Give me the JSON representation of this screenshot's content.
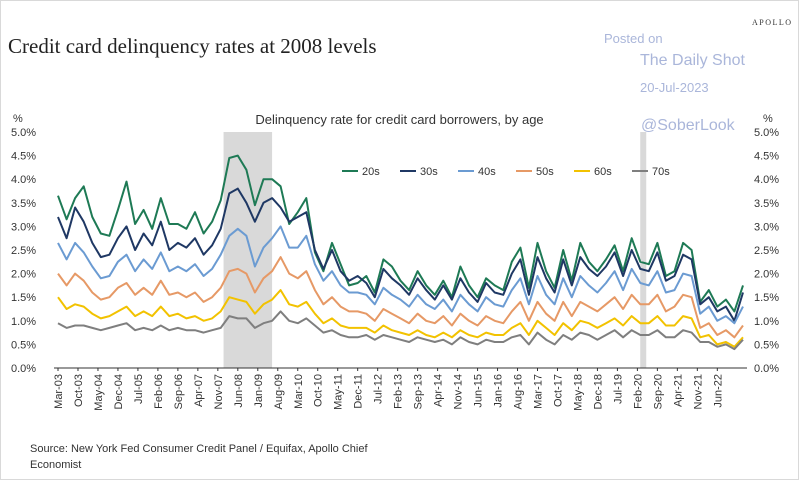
{
  "header": {
    "title": "Credit card delinquency rates at 2008 levels",
    "brand": "APOLLO",
    "subtitle": "Delinquency rate for credit card borrowers, by age",
    "axis_unit_left": "%",
    "axis_unit_right": "%",
    "source": "Source: New York Fed Consumer Credit Panel / Equifax, Apollo Chief Economist"
  },
  "watermark": {
    "posted_on": "Posted on",
    "site": "The Daily Shot",
    "date": "20-Jul-2023",
    "handle": "@SoberLook"
  },
  "chart_data": {
    "type": "line",
    "title": "Delinquency rate for credit card borrowers, by age",
    "ylabel": "%",
    "ylim": [
      0,
      5
    ],
    "yticks": [
      "0.0%",
      "0.5%",
      "1.0%",
      "1.5%",
      "2.0%",
      "2.5%",
      "3.0%",
      "3.5%",
      "4.0%",
      "4.5%",
      "5.0%"
    ],
    "x_start": "Mar-03",
    "x_step_months": 3,
    "x_count": 81,
    "xtick_labels": [
      "Mar-03",
      "Oct-03",
      "May-04",
      "Dec-04",
      "Jul-05",
      "Feb-06",
      "Sep-06",
      "Apr-07",
      "Nov-07",
      "Jun-08",
      "Jan-09",
      "Aug-09",
      "Mar-10",
      "Oct-10",
      "May-11",
      "Dec-11",
      "Jul-12",
      "Feb-13",
      "Sep-13",
      "Apr-14",
      "Nov-14",
      "Jun-15",
      "Jan-16",
      "Aug-16",
      "Mar-17",
      "Oct-17",
      "May-18",
      "Dec-18",
      "Jul-19",
      "Feb-20",
      "Sep-20",
      "Apr-21",
      "Nov-21",
      "Jun-22"
    ],
    "recessions": [
      [
        "Jan-08",
        "Jun-09"
      ],
      [
        "Mar-20",
        "Apr-20"
      ]
    ],
    "legend_position": "top-right",
    "grid": false,
    "series": [
      {
        "name": "20s",
        "color": "#1e7a55",
        "values": [
          3.65,
          3.15,
          3.6,
          3.85,
          3.2,
          2.85,
          2.8,
          3.35,
          3.95,
          3.05,
          3.35,
          2.95,
          3.6,
          3.05,
          3.05,
          2.95,
          3.3,
          2.85,
          3.1,
          3.55,
          4.45,
          4.5,
          4.2,
          3.45,
          4.0,
          4.0,
          3.85,
          3.05,
          3.3,
          3.6,
          2.45,
          2.05,
          2.65,
          2.2,
          1.75,
          1.8,
          1.95,
          1.6,
          2.3,
          2.15,
          1.85,
          1.65,
          2.05,
          1.75,
          1.55,
          1.85,
          1.5,
          2.15,
          1.75,
          1.5,
          1.9,
          1.75,
          1.65,
          2.25,
          2.55,
          1.7,
          2.65,
          2.05,
          1.7,
          2.5,
          1.85,
          2.65,
          2.25,
          2.05,
          2.3,
          2.6,
          2.05,
          2.75,
          2.25,
          2.2,
          2.65,
          1.95,
          2.05,
          2.65,
          2.5,
          1.4,
          1.65,
          1.3,
          1.45,
          1.2,
          1.75
        ]
      },
      {
        "name": "30s",
        "color": "#1f3864",
        "values": [
          3.2,
          2.75,
          3.4,
          3.1,
          2.65,
          2.35,
          2.4,
          2.75,
          3.0,
          2.5,
          2.85,
          2.6,
          3.1,
          2.5,
          2.65,
          2.55,
          2.75,
          2.4,
          2.6,
          2.95,
          3.7,
          3.8,
          3.5,
          3.1,
          3.5,
          3.6,
          3.4,
          3.1,
          3.2,
          3.3,
          2.5,
          2.1,
          2.5,
          2.05,
          1.85,
          1.95,
          1.8,
          1.5,
          2.1,
          1.9,
          1.75,
          1.55,
          1.9,
          1.65,
          1.45,
          1.75,
          1.45,
          1.9,
          1.6,
          1.4,
          1.8,
          1.6,
          1.55,
          2.0,
          2.3,
          1.55,
          2.35,
          1.9,
          1.6,
          2.3,
          1.75,
          2.35,
          2.1,
          1.95,
          2.15,
          2.45,
          1.95,
          2.5,
          2.1,
          2.05,
          2.45,
          1.85,
          1.95,
          2.4,
          2.3,
          1.35,
          1.5,
          1.2,
          1.3,
          1.0,
          1.6
        ]
      },
      {
        "name": "40s",
        "color": "#6b9bd2",
        "values": [
          2.65,
          2.3,
          2.65,
          2.45,
          2.15,
          1.9,
          1.95,
          2.25,
          2.4,
          2.05,
          2.3,
          2.1,
          2.45,
          2.05,
          2.15,
          2.05,
          2.2,
          1.95,
          2.1,
          2.4,
          2.8,
          2.95,
          2.8,
          2.15,
          2.55,
          2.75,
          3.0,
          2.55,
          2.55,
          2.8,
          2.2,
          1.85,
          2.05,
          1.75,
          1.6,
          1.6,
          1.55,
          1.35,
          1.7,
          1.55,
          1.45,
          1.3,
          1.55,
          1.35,
          1.25,
          1.45,
          1.2,
          1.55,
          1.35,
          1.2,
          1.5,
          1.35,
          1.3,
          1.65,
          1.9,
          1.35,
          1.95,
          1.55,
          1.35,
          1.9,
          1.5,
          1.95,
          1.75,
          1.6,
          1.8,
          2.05,
          1.65,
          2.1,
          1.8,
          1.75,
          2.05,
          1.6,
          1.65,
          2.0,
          1.95,
          1.15,
          1.3,
          1.0,
          1.1,
          0.95,
          1.3
        ]
      },
      {
        "name": "50s",
        "color": "#e69966",
        "values": [
          2.0,
          1.75,
          2.0,
          1.85,
          1.6,
          1.45,
          1.5,
          1.7,
          1.8,
          1.55,
          1.7,
          1.55,
          1.85,
          1.55,
          1.6,
          1.5,
          1.6,
          1.4,
          1.5,
          1.7,
          2.05,
          2.1,
          2.0,
          1.6,
          1.9,
          2.05,
          2.35,
          2.0,
          1.9,
          2.05,
          1.65,
          1.35,
          1.5,
          1.3,
          1.2,
          1.2,
          1.15,
          1.0,
          1.25,
          1.15,
          1.05,
          0.95,
          1.15,
          1.0,
          0.95,
          1.1,
          0.9,
          1.15,
          1.0,
          0.9,
          1.1,
          1.0,
          0.95,
          1.2,
          1.4,
          1.0,
          1.4,
          1.15,
          1.0,
          1.4,
          1.1,
          1.4,
          1.3,
          1.2,
          1.35,
          1.5,
          1.25,
          1.55,
          1.35,
          1.35,
          1.55,
          1.2,
          1.3,
          1.55,
          1.5,
          0.85,
          0.95,
          0.7,
          0.8,
          0.65,
          0.9
        ]
      },
      {
        "name": "60s",
        "color": "#f2c200",
        "values": [
          1.5,
          1.25,
          1.35,
          1.3,
          1.15,
          1.05,
          1.1,
          1.2,
          1.3,
          1.1,
          1.2,
          1.1,
          1.3,
          1.1,
          1.15,
          1.05,
          1.1,
          1.0,
          1.05,
          1.2,
          1.5,
          1.45,
          1.4,
          1.15,
          1.35,
          1.45,
          1.65,
          1.35,
          1.3,
          1.4,
          1.15,
          0.95,
          1.05,
          0.9,
          0.85,
          0.85,
          0.85,
          0.75,
          0.9,
          0.8,
          0.75,
          0.7,
          0.8,
          0.7,
          0.65,
          0.75,
          0.65,
          0.8,
          0.7,
          0.65,
          0.75,
          0.7,
          0.7,
          0.85,
          0.95,
          0.7,
          1.0,
          0.85,
          0.7,
          0.95,
          0.8,
          1.0,
          0.95,
          0.85,
          0.95,
          1.05,
          0.9,
          1.1,
          0.95,
          0.95,
          1.1,
          0.9,
          0.9,
          1.1,
          1.05,
          0.65,
          0.7,
          0.5,
          0.55,
          0.45,
          0.65
        ]
      },
      {
        "name": "70s",
        "color": "#7f7f7f",
        "values": [
          0.95,
          0.85,
          0.9,
          0.9,
          0.85,
          0.8,
          0.85,
          0.9,
          0.95,
          0.8,
          0.85,
          0.8,
          0.9,
          0.8,
          0.85,
          0.8,
          0.8,
          0.75,
          0.8,
          0.85,
          1.1,
          1.05,
          1.05,
          0.85,
          0.95,
          1.0,
          1.2,
          1.0,
          0.95,
          1.05,
          0.9,
          0.75,
          0.8,
          0.7,
          0.65,
          0.65,
          0.7,
          0.6,
          0.7,
          0.65,
          0.6,
          0.55,
          0.65,
          0.6,
          0.55,
          0.6,
          0.5,
          0.65,
          0.55,
          0.5,
          0.6,
          0.55,
          0.55,
          0.65,
          0.7,
          0.5,
          0.75,
          0.6,
          0.5,
          0.7,
          0.6,
          0.75,
          0.7,
          0.6,
          0.7,
          0.8,
          0.65,
          0.8,
          0.7,
          0.7,
          0.8,
          0.65,
          0.65,
          0.8,
          0.75,
          0.55,
          0.55,
          0.45,
          0.5,
          0.4,
          0.6
        ]
      }
    ]
  }
}
